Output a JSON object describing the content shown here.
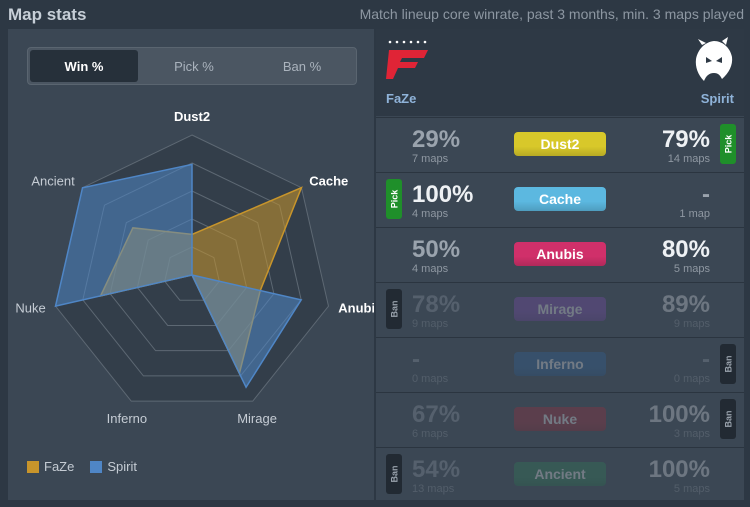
{
  "header": {
    "title": "Map stats",
    "subtitle": "Match lineup core winrate, past 3 months, min. 3 maps played"
  },
  "tabs": [
    {
      "label": "Win %",
      "active": true
    },
    {
      "label": "Pick %",
      "active": false
    },
    {
      "label": "Ban %",
      "active": false
    }
  ],
  "chart_data": {
    "type": "radar",
    "axes": [
      "Dust2",
      "Cache",
      "Anubis",
      "Mirage",
      "Inferno",
      "Nuke",
      "Ancient"
    ],
    "range": [
      0,
      100
    ],
    "series": [
      {
        "name": "FaZe",
        "color": "#c8952b",
        "values": [
          29,
          100,
          50,
          78,
          0,
          67,
          54
        ]
      },
      {
        "name": "Spirit",
        "color": "#4f86c6",
        "values": [
          79,
          0,
          80,
          89,
          0,
          100,
          100
        ]
      }
    ],
    "legend": "bottom-left"
  },
  "legend": [
    {
      "label": "FaZe",
      "color": "#c8952b"
    },
    {
      "label": "Spirit",
      "color": "#4f86c6"
    }
  ],
  "teams": {
    "left": {
      "name": "FaZe",
      "logo": "faze-logo"
    },
    "right": {
      "name": "Spirit",
      "logo": "spirit-dragon-logo"
    }
  },
  "rows": [
    {
      "map": "Dust2",
      "color": "#d8c82a",
      "left_pct": "29%",
      "left_maps": "7 maps",
      "right_pct": "79%",
      "right_maps": "14 maps",
      "left_tag": "",
      "right_tag": "Pick",
      "dim": false,
      "left_hi": false,
      "right_hi": true
    },
    {
      "map": "Cache",
      "color": "#5cb8e0",
      "left_pct": "100%",
      "left_maps": "4 maps",
      "right_pct": "-",
      "right_maps": "1 map",
      "left_tag": "Pick",
      "right_tag": "",
      "dim": false,
      "left_hi": true,
      "right_hi": false
    },
    {
      "map": "Anubis",
      "color": "#d0306a",
      "left_pct": "50%",
      "left_maps": "4 maps",
      "right_pct": "80%",
      "right_maps": "5 maps",
      "left_tag": "",
      "right_tag": "",
      "dim": false,
      "left_hi": false,
      "right_hi": true
    },
    {
      "map": "Mirage",
      "color": "#8a4ec0",
      "left_pct": "78%",
      "left_maps": "9 maps",
      "right_pct": "89%",
      "right_maps": "9 maps",
      "left_tag": "Ban",
      "right_tag": "",
      "dim": true,
      "left_hi": false,
      "right_hi": true
    },
    {
      "map": "Inferno",
      "color": "#2f6aa8",
      "left_pct": "-",
      "left_maps": "0 maps",
      "right_pct": "-",
      "right_maps": "0 maps",
      "left_tag": "",
      "right_tag": "Ban",
      "dim": true,
      "left_hi": false,
      "right_hi": false
    },
    {
      "map": "Nuke",
      "color": "#b02a3a",
      "left_pct": "67%",
      "left_maps": "6 maps",
      "right_pct": "100%",
      "right_maps": "3 maps",
      "left_tag": "",
      "right_tag": "Ban",
      "dim": true,
      "left_hi": false,
      "right_hi": true
    },
    {
      "map": "Ancient",
      "color": "#2e8a5a",
      "left_pct": "54%",
      "left_maps": "13 maps",
      "right_pct": "100%",
      "right_maps": "5 maps",
      "left_tag": "Ban",
      "right_tag": "",
      "dim": true,
      "left_hi": false,
      "right_hi": true
    }
  ]
}
